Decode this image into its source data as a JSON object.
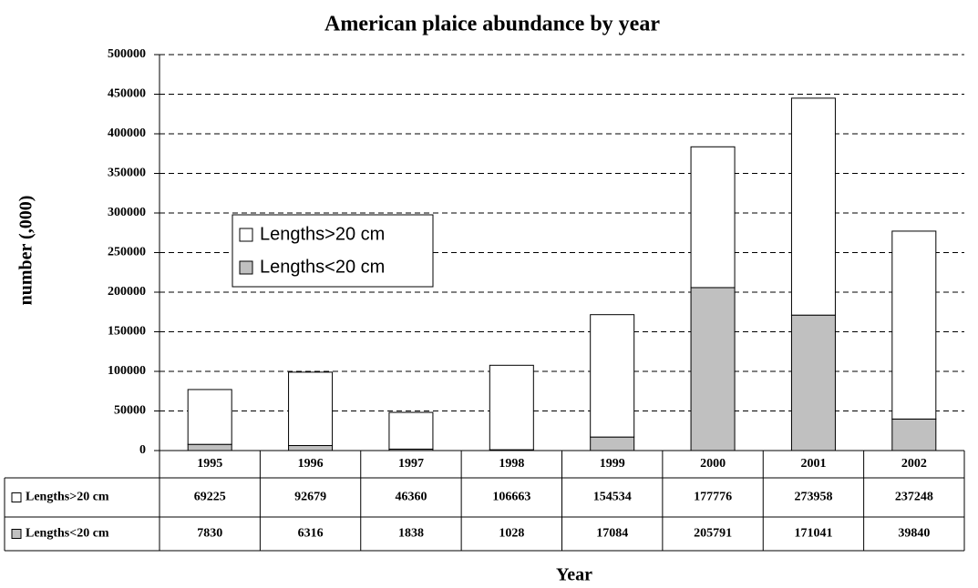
{
  "chart_data": {
    "type": "bar",
    "stacked": true,
    "title": "American plaice abundance by year",
    "y_label": "number (,000)",
    "x_label": "Year",
    "categories": [
      "1995",
      "1996",
      "1997",
      "1998",
      "1999",
      "2000",
      "2001",
      "2002"
    ],
    "series": [
      {
        "name": "Lengths>20 cm",
        "color": "#ffffff",
        "values": [
          69225,
          92679,
          46360,
          106663,
          154534,
          177776,
          273958,
          237248
        ]
      },
      {
        "name": "Lengths<20 cm",
        "color": "#c0c0c0",
        "values": [
          7830,
          6316,
          1838,
          1028,
          17084,
          205791,
          171041,
          39840
        ]
      }
    ],
    "ylim": [
      0,
      500000
    ],
    "yticks": [
      0,
      50000,
      100000,
      150000,
      200000,
      250000,
      300000,
      350000,
      400000,
      450000,
      500000
    ],
    "grid": true,
    "legend": "left"
  }
}
